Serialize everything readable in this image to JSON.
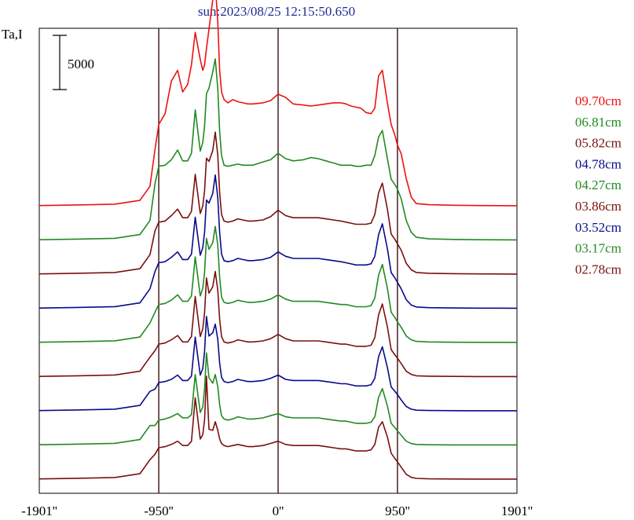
{
  "chart_data": {
    "type": "line",
    "title": "sun:2023/08/25 12:15:50.650",
    "ylabel": "Ta,I",
    "scale_bar": {
      "label": "5000",
      "value": 5000
    },
    "xlim": [
      -1901,
      1901
    ],
    "x_ticks": [
      {
        "value": -1901,
        "label": "-1901''"
      },
      {
        "value": -950,
        "label": "-950''"
      },
      {
        "value": 0,
        "label": "0''"
      },
      {
        "value": 950,
        "label": "950''"
      },
      {
        "value": 1901,
        "label": "1901''"
      }
    ],
    "vertical_lines": [
      -950,
      0,
      950
    ],
    "offset_step": 5000,
    "legend_placement": "right",
    "x": [
      -1901,
      -1600,
      -1300,
      -1100,
      -1020,
      -980,
      -950,
      -900,
      -850,
      -800,
      -760,
      -720,
      -690,
      -660,
      -620,
      -600,
      -585,
      -570,
      -550,
      -520,
      -500,
      -480,
      -465,
      -450,
      -430,
      -400,
      -360,
      -320,
      -280,
      -240,
      -200,
      -120,
      -60,
      0,
      60,
      120,
      200,
      260,
      320,
      380,
      440,
      500,
      540,
      580,
      620,
      660,
      700,
      740,
      770,
      800,
      830,
      870,
      900,
      930,
      950,
      980,
      1020,
      1060,
      1100,
      1200,
      1400,
      1600,
      1901
    ],
    "series": [
      {
        "name": "09.70cm",
        "color": "#ee1111",
        "values": [
          20,
          80,
          150,
          500,
          1800,
          5200,
          7500,
          8500,
          11500,
          12500,
          10500,
          11200,
          13000,
          16000,
          13500,
          12500,
          13000,
          14500,
          16300,
          19000,
          20500,
          17000,
          12500,
          10500,
          9800,
          9500,
          9800,
          9600,
          9500,
          9400,
          9400,
          9500,
          9700,
          10300,
          10000,
          9400,
          9300,
          9200,
          9300,
          9400,
          9500,
          9500,
          9400,
          9200,
          9100,
          9000,
          8600,
          8500,
          9000,
          12000,
          12500,
          9500,
          7500,
          6500,
          5600,
          4800,
          2500,
          800,
          200,
          100,
          50,
          20,
          10
        ]
      },
      {
        "name": "06.81cm",
        "color": "#218a21",
        "values": [
          20,
          80,
          150,
          500,
          1800,
          5200,
          6800,
          6900,
          7400,
          8300,
          7300,
          7300,
          8000,
          12000,
          8200,
          9000,
          10500,
          13500,
          14000,
          15500,
          16700,
          14000,
          10000,
          7800,
          6900,
          6800,
          6900,
          7000,
          6900,
          6900,
          6900,
          7200,
          7400,
          8000,
          7500,
          7300,
          7400,
          7600,
          7500,
          7300,
          7100,
          6900,
          6900,
          6900,
          6800,
          6800,
          6900,
          6900,
          7800,
          9500,
          10100,
          7500,
          5600,
          5100,
          4700,
          3800,
          1800,
          700,
          250,
          100,
          50,
          20,
          10
        ]
      },
      {
        "name": "05.82cm",
        "color": "#7a1010",
        "values": [
          20,
          80,
          150,
          500,
          1800,
          4000,
          4800,
          4900,
          5400,
          6000,
          5200,
          5200,
          5800,
          9200,
          5600,
          6300,
          7700,
          10700,
          10400,
          11400,
          13100,
          11000,
          7500,
          5500,
          4900,
          4800,
          4900,
          5100,
          5000,
          4900,
          4900,
          5000,
          5300,
          5900,
          5400,
          5200,
          5200,
          5200,
          5200,
          5100,
          5000,
          4900,
          4800,
          4700,
          4600,
          4600,
          4600,
          4700,
          5500,
          7500,
          8400,
          6000,
          3700,
          3200,
          2800,
          2200,
          1000,
          400,
          150,
          80,
          40,
          20,
          10
        ]
      },
      {
        "name": "04.78cm",
        "color": "#0a0a8a",
        "values": [
          20,
          80,
          150,
          500,
          1800,
          3400,
          4200,
          4300,
          4700,
          5200,
          4500,
          4500,
          5000,
          8400,
          4900,
          5600,
          7000,
          10000,
          9700,
          10600,
          12300,
          10200,
          7000,
          5000,
          4400,
          4300,
          4400,
          4600,
          4500,
          4400,
          4400,
          4500,
          4700,
          5200,
          4800,
          4600,
          4600,
          4600,
          4600,
          4500,
          4400,
          4300,
          4200,
          4100,
          4000,
          4000,
          4000,
          4100,
          4800,
          6800,
          7800,
          5500,
          3300,
          2800,
          2400,
          1800,
          800,
          300,
          120,
          60,
          30,
          15,
          10
        ]
      },
      {
        "name": "04.27cm",
        "color": "#218a21",
        "values": [
          20,
          80,
          150,
          500,
          1800,
          2800,
          3500,
          3600,
          3900,
          4400,
          3800,
          3800,
          4300,
          7900,
          4300,
          5000,
          6500,
          9600,
          8600,
          9200,
          10700,
          9000,
          6000,
          4200,
          3700,
          3600,
          3700,
          3900,
          3800,
          3700,
          3700,
          3800,
          4000,
          4400,
          4000,
          3800,
          3800,
          3800,
          3800,
          3700,
          3600,
          3500,
          3500,
          3400,
          3300,
          3300,
          3300,
          3400,
          4100,
          6200,
          7200,
          5000,
          2800,
          2300,
          1900,
          1400,
          600,
          250,
          100,
          50,
          25,
          15,
          10
        ]
      },
      {
        "name": "03.86cm",
        "color": "#7a1010",
        "values": [
          20,
          80,
          150,
          500,
          1800,
          2400,
          3000,
          3100,
          3400,
          3800,
          3200,
          3200,
          3700,
          7400,
          3700,
          4400,
          5900,
          9100,
          7700,
          8300,
          9700,
          8000,
          5300,
          3700,
          3200,
          3100,
          3200,
          3400,
          3300,
          3200,
          3200,
          3300,
          3500,
          3900,
          3500,
          3300,
          3300,
          3300,
          3300,
          3200,
          3100,
          3000,
          3000,
          2900,
          2800,
          2800,
          2800,
          2900,
          3600,
          5700,
          6700,
          4600,
          2500,
          2000,
          1700,
          1200,
          500,
          200,
          80,
          40,
          20,
          10,
          10
        ]
      },
      {
        "name": "03.52cm",
        "color": "#0a0a8a",
        "values": [
          20,
          80,
          150,
          500,
          1800,
          2000,
          2600,
          2700,
          2900,
          3300,
          2800,
          2800,
          3200,
          6800,
          3300,
          3900,
          5500,
          8700,
          6900,
          7200,
          8000,
          6600,
          4400,
          3100,
          2700,
          2600,
          2700,
          2900,
          2800,
          2700,
          2700,
          2800,
          3000,
          3300,
          2900,
          2800,
          2800,
          2800,
          2800,
          2700,
          2600,
          2500,
          2500,
          2400,
          2300,
          2300,
          2300,
          2400,
          3000,
          5000,
          5900,
          4000,
          2200,
          1800,
          1500,
          1000,
          400,
          150,
          60,
          30,
          15,
          10,
          10
        ]
      },
      {
        "name": "03.17cm",
        "color": "#218a21",
        "values": [
          20,
          80,
          150,
          500,
          1800,
          1800,
          2300,
          2400,
          2600,
          2900,
          2500,
          2500,
          2800,
          6500,
          3000,
          3500,
          5200,
          8500,
          6200,
          5700,
          6500,
          5400,
          3700,
          2700,
          2400,
          2300,
          2400,
          2600,
          2500,
          2400,
          2400,
          2500,
          2700,
          2900,
          2600,
          2500,
          2500,
          2500,
          2500,
          2400,
          2300,
          2200,
          2200,
          2100,
          2000,
          2000,
          2000,
          2100,
          2600,
          4400,
          5200,
          3600,
          2000,
          1600,
          1300,
          900,
          350,
          130,
          50,
          25,
          10,
          10,
          10
        ]
      },
      {
        "name": "02.78cm",
        "color": "#7a1010",
        "values": [
          20,
          80,
          150,
          500,
          1800,
          2300,
          2900,
          3000,
          3200,
          3500,
          3100,
          3100,
          3500,
          7500,
          3700,
          4100,
          5500,
          9500,
          4600,
          4500,
          5300,
          4500,
          3700,
          3300,
          3100,
          3000,
          3100,
          3200,
          3100,
          3000,
          3000,
          3100,
          3300,
          3500,
          3200,
          3100,
          3100,
          3100,
          3100,
          3000,
          2900,
          2800,
          2800,
          2700,
          2600,
          2600,
          2600,
          2700,
          3200,
          4800,
          5300,
          3900,
          2400,
          1900,
          1600,
          1100,
          450,
          170,
          70,
          30,
          15,
          10,
          10
        ]
      }
    ]
  }
}
